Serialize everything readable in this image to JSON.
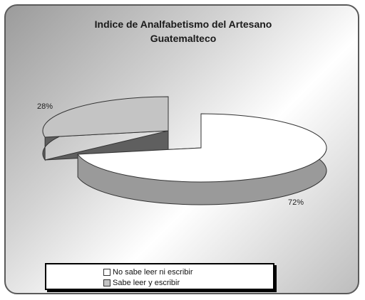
{
  "chart_data": {
    "type": "pie",
    "title_lines": [
      "Indice de Analfabetismo del Artesano",
      "Guatemalteco"
    ],
    "slices": [
      {
        "label": "No sabe leer ni escribir",
        "value": 72,
        "value_label": "72%",
        "color": "#ffffff",
        "side_color": "#9a9a9a"
      },
      {
        "label": "Sabe leer y escribir",
        "value": 28,
        "value_label": "28%",
        "color": "#c4c4c4",
        "side_color": "#5f5f5f"
      }
    ],
    "legend_position": "bottom",
    "exploded": true,
    "three_d": true
  }
}
